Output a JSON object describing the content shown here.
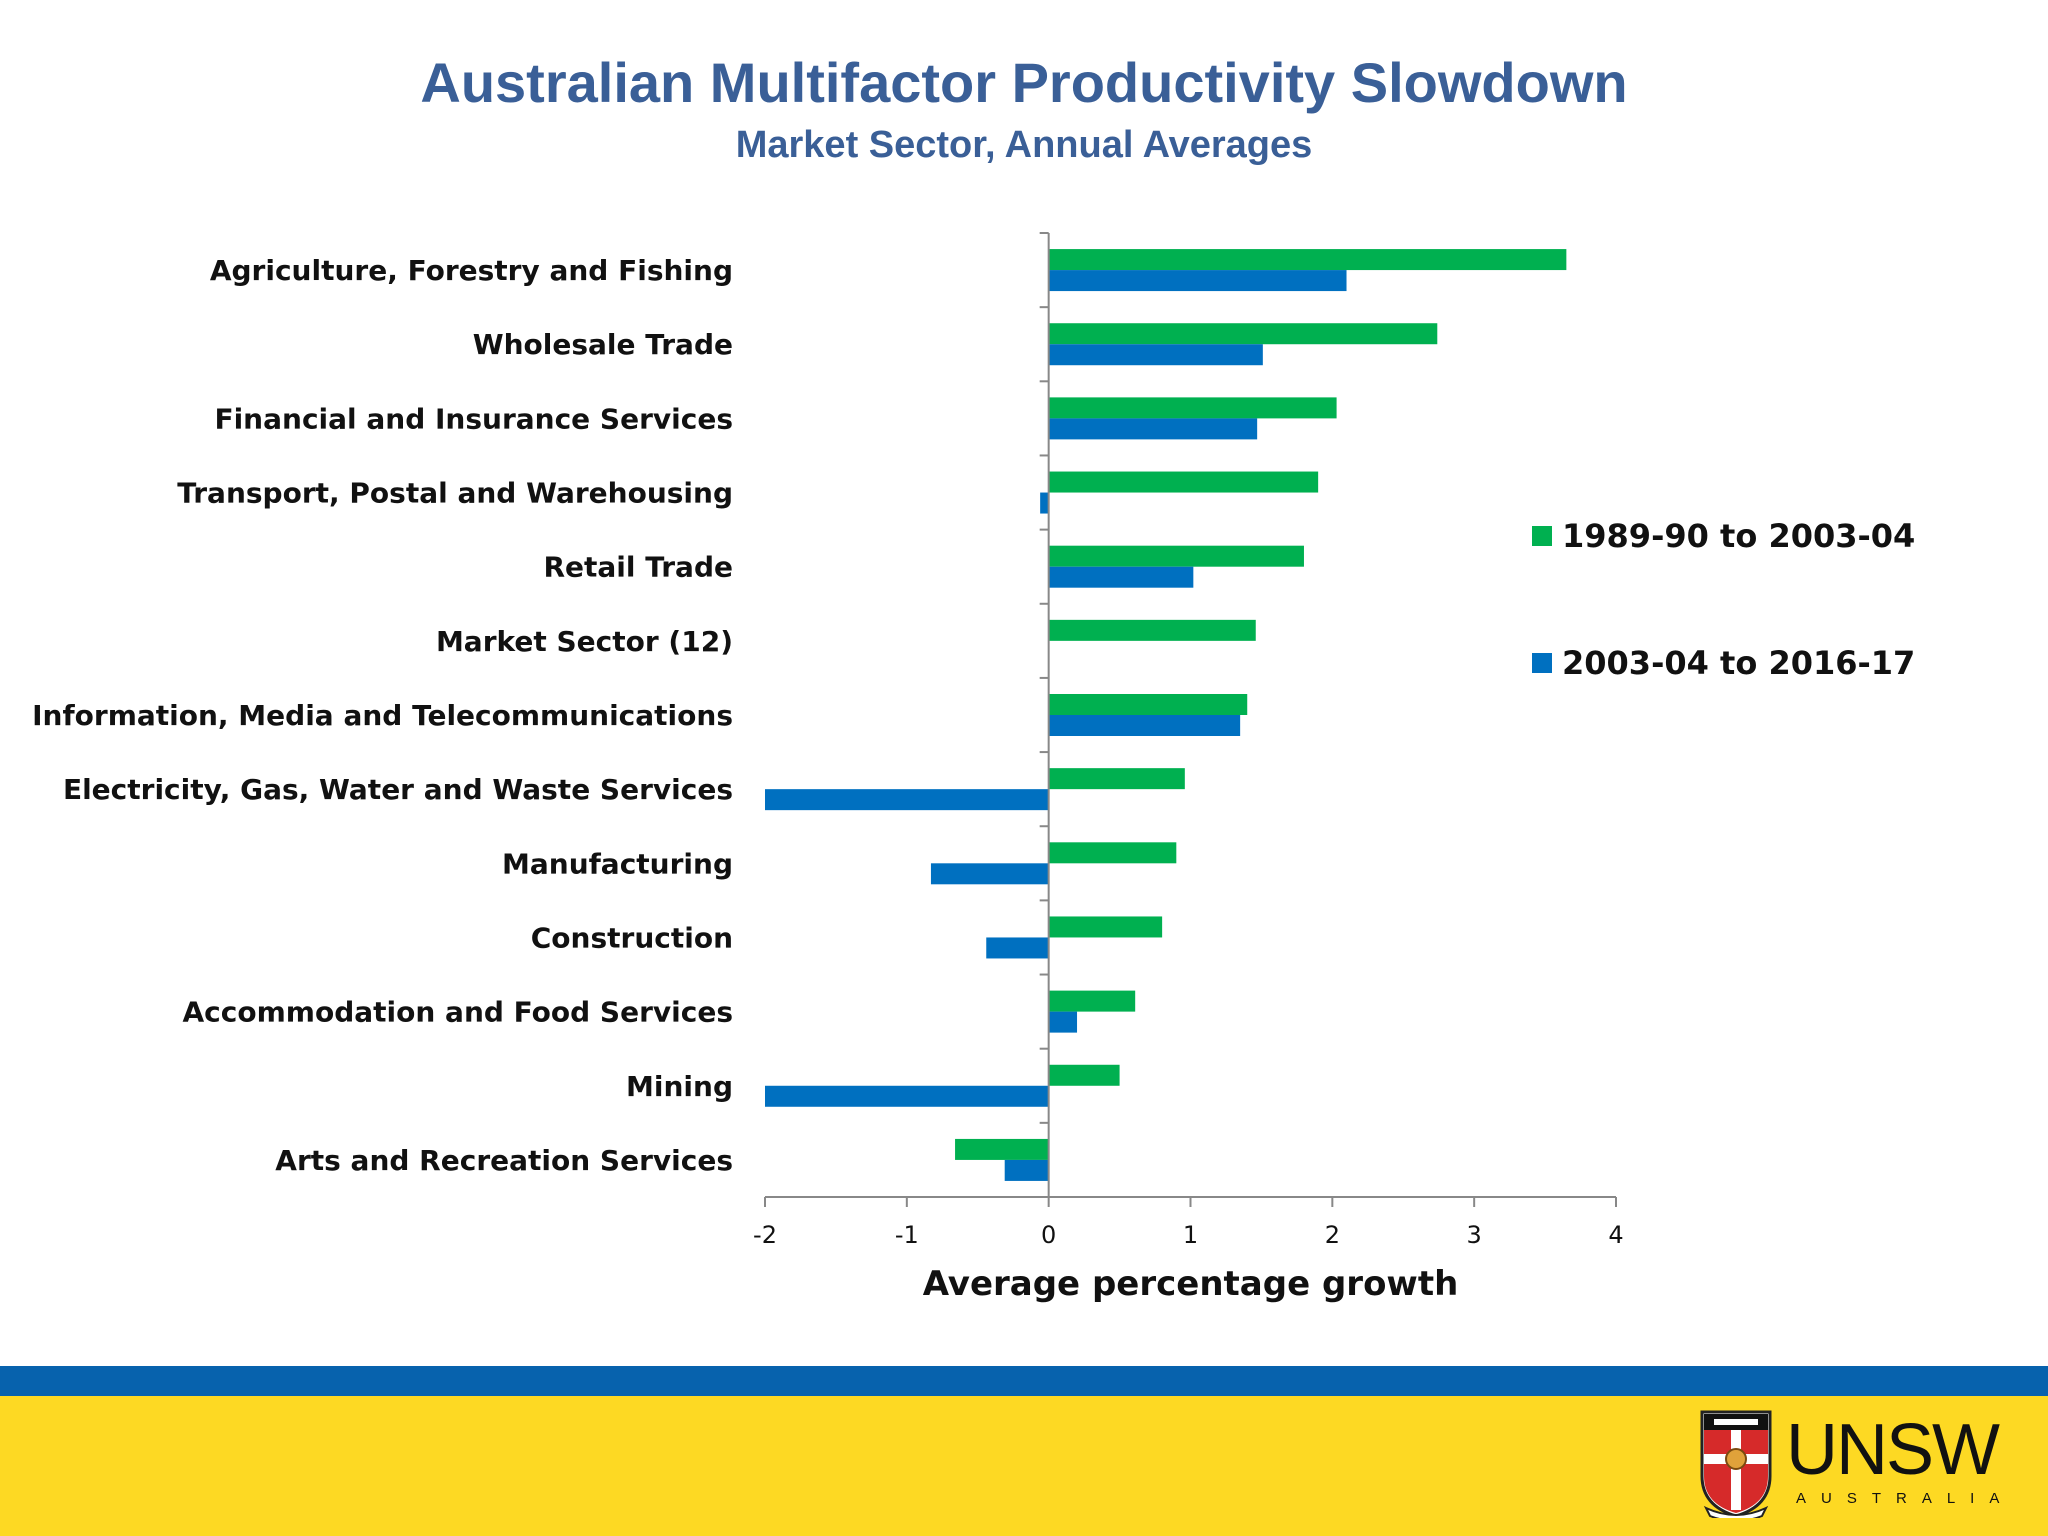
{
  "slide": {
    "title": "Australian Multifactor Productivity Slowdown",
    "subtitle": "Market Sector, Annual Averages"
  },
  "chart_data": {
    "type": "bar",
    "orientation": "horizontal",
    "categories": [
      "Agriculture, Forestry and Fishing",
      "Wholesale Trade",
      "Financial and Insurance Services",
      "Transport, Postal and Warehousing",
      "Retail Trade",
      "Market Sector (12)",
      "Information, Media and Telecommunications",
      "Electricity, Gas, Water and Waste Services",
      "Manufacturing",
      "Construction",
      "Accommodation and Food Services",
      "Mining",
      "Arts and Recreation Services"
    ],
    "series": [
      {
        "name": "1989-90 to 2003-04",
        "color": "#00b050",
        "values": [
          3.65,
          2.74,
          2.03,
          1.9,
          1.8,
          1.46,
          1.4,
          0.96,
          0.9,
          0.8,
          0.61,
          0.5,
          -0.66
        ]
      },
      {
        "name": "2003-04 to 2016-17",
        "color": "#0070c0",
        "values": [
          2.1,
          1.51,
          1.47,
          -0.06,
          1.02,
          0,
          1.35,
          -2.0,
          -0.83,
          -0.44,
          0.2,
          -2.0,
          -0.31
        ]
      }
    ],
    "xlabel": "Average percentage growth",
    "xlim": [
      -2,
      4
    ],
    "xticks": [
      "-2",
      "-1",
      "0",
      "1",
      "2",
      "3",
      "4"
    ],
    "grid": false,
    "legend_position": "right"
  },
  "logo": {
    "wordmark": "UNSW",
    "submark": "AUSTRALIA"
  }
}
